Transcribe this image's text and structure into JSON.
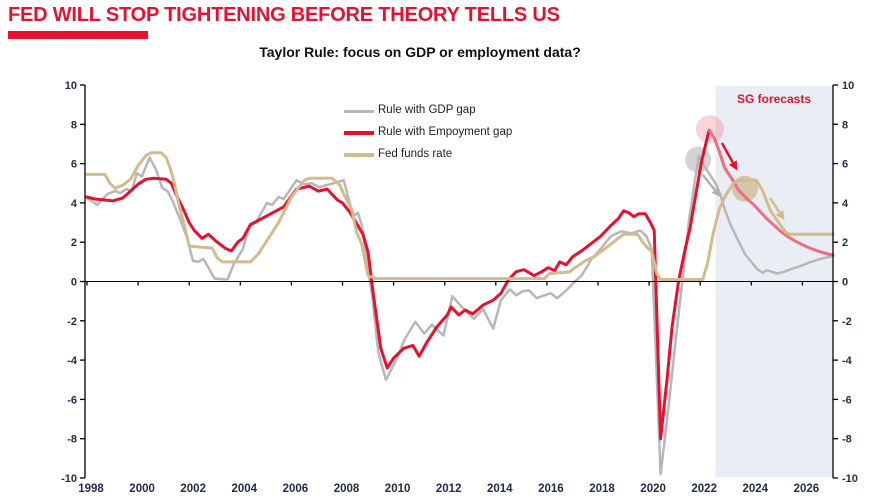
{
  "header": {
    "title": "FED WILL STOP TIGHTENING BEFORE THEORY TELLS US"
  },
  "colors": {
    "accent_red": "#e8112d",
    "forecast_red": "#ec6e80",
    "gdp_gray": "#b7b7b7",
    "fed_tan": "#d2bc8d",
    "axis_label_navy": "#242c48",
    "forecast_shading": "#e9eef4"
  },
  "chart_data": {
    "type": "line",
    "title": "Taylor Rule: focus on GDP or employment data?",
    "xlabel": "",
    "ylabel": "",
    "x_range": [
      1998,
      2027.2
    ],
    "ylim": [
      -10,
      10
    ],
    "y_ticks": [
      10,
      8,
      6,
      4,
      2,
      0,
      -2,
      -4,
      -6,
      -8,
      -10
    ],
    "x_tick_labels": [
      "1998",
      "2000",
      "2002",
      "2004",
      "2006",
      "2008",
      "2010",
      "2012",
      "2014",
      "2016",
      "2018",
      "2020",
      "2022",
      "2024",
      "2026"
    ],
    "x_tick_years": [
      1998,
      2000,
      2002,
      2004,
      2006,
      2008,
      2010,
      2012,
      2014,
      2016,
      2018,
      2020,
      2022,
      2024,
      2026
    ],
    "grid": false,
    "legend_position": "top-center",
    "forecast_region": {
      "from": 2022.6,
      "to": 2027.2,
      "label": "SG forecasts"
    },
    "series": [
      {
        "name": "Rule with GDP gap",
        "color": "#b7b7b7",
        "width": 2.5,
        "points": [
          [
            1998.0,
            4.25
          ],
          [
            1998.4,
            3.9
          ],
          [
            1998.8,
            4.45
          ],
          [
            1999.1,
            4.6
          ],
          [
            1999.3,
            4.5
          ],
          [
            1999.55,
            4.7
          ],
          [
            1999.75,
            4.6
          ],
          [
            1999.95,
            5.5
          ],
          [
            2000.15,
            5.35
          ],
          [
            2000.45,
            6.3
          ],
          [
            2000.7,
            5.7
          ],
          [
            2000.95,
            4.75
          ],
          [
            2001.15,
            4.6
          ],
          [
            2001.35,
            4.1
          ],
          [
            2001.6,
            3.3
          ],
          [
            2001.9,
            2.3
          ],
          [
            2002.15,
            1.05
          ],
          [
            2002.35,
            1.0
          ],
          [
            2002.55,
            1.15
          ],
          [
            2002.8,
            0.6
          ],
          [
            2003.0,
            0.15
          ],
          [
            2003.5,
            0.1
          ],
          [
            2003.75,
            0.9
          ],
          [
            2004.1,
            1.65
          ],
          [
            2004.35,
            2.8
          ],
          [
            2004.6,
            3.0
          ],
          [
            2005.05,
            4.0
          ],
          [
            2005.25,
            3.9
          ],
          [
            2005.5,
            4.3
          ],
          [
            2005.7,
            4.2
          ],
          [
            2006.2,
            5.15
          ],
          [
            2006.5,
            4.95
          ],
          [
            2006.8,
            5.0
          ],
          [
            2007.1,
            4.8
          ],
          [
            2007.5,
            4.95
          ],
          [
            2007.9,
            5.1
          ],
          [
            2008.05,
            5.15
          ],
          [
            2008.3,
            3.9
          ],
          [
            2008.45,
            3.35
          ],
          [
            2008.6,
            3.5
          ],
          [
            2008.75,
            2.9
          ],
          [
            2009.0,
            0.6
          ],
          [
            2009.15,
            -0.6
          ],
          [
            2009.4,
            -3.6
          ],
          [
            2009.7,
            -5.0
          ],
          [
            2010.1,
            -4.0
          ],
          [
            2010.45,
            -2.9
          ],
          [
            2010.85,
            -2.05
          ],
          [
            2011.2,
            -2.65
          ],
          [
            2011.5,
            -2.2
          ],
          [
            2011.95,
            -2.75
          ],
          [
            2012.3,
            -0.75
          ],
          [
            2012.6,
            -1.2
          ],
          [
            2012.9,
            -1.6
          ],
          [
            2013.15,
            -1.9
          ],
          [
            2013.5,
            -1.4
          ],
          [
            2013.9,
            -2.4
          ],
          [
            2014.2,
            -0.95
          ],
          [
            2014.55,
            -0.4
          ],
          [
            2014.8,
            -0.7
          ],
          [
            2015.05,
            -0.5
          ],
          [
            2015.3,
            -0.45
          ],
          [
            2015.6,
            -0.85
          ],
          [
            2015.9,
            -0.7
          ],
          [
            2016.15,
            -0.6
          ],
          [
            2016.4,
            -0.85
          ],
          [
            2016.8,
            -0.4
          ],
          [
            2017.1,
            0.0
          ],
          [
            2017.35,
            0.3
          ],
          [
            2017.55,
            0.7
          ],
          [
            2017.75,
            1.15
          ],
          [
            2018.0,
            1.5
          ],
          [
            2018.25,
            1.9
          ],
          [
            2018.5,
            2.3
          ],
          [
            2018.9,
            2.55
          ],
          [
            2019.3,
            2.45
          ],
          [
            2019.65,
            2.6
          ],
          [
            2019.9,
            2.3
          ],
          [
            2020.1,
            1.65
          ],
          [
            2020.45,
            -9.8
          ],
          [
            2020.75,
            -6.5
          ],
          [
            2021.0,
            -3.5
          ],
          [
            2021.3,
            0.0
          ],
          [
            2021.55,
            3.0
          ],
          [
            2021.8,
            5.2
          ],
          [
            2021.95,
            6.4
          ],
          [
            2022.1,
            6.0
          ],
          [
            2022.3,
            5.6
          ],
          [
            2022.6,
            5.0
          ],
          [
            2022.8,
            4.4
          ],
          [
            2022.95,
            3.7
          ],
          [
            2023.2,
            2.85
          ],
          [
            2023.5,
            2.05
          ],
          [
            2023.75,
            1.4
          ],
          [
            2024.0,
            1.0
          ],
          [
            2024.25,
            0.6
          ],
          [
            2024.45,
            0.45
          ],
          [
            2024.6,
            0.57
          ],
          [
            2024.8,
            0.5
          ],
          [
            2025.0,
            0.4
          ],
          [
            2025.3,
            0.5
          ],
          [
            2025.6,
            0.65
          ],
          [
            2025.9,
            0.77
          ],
          [
            2026.3,
            0.98
          ],
          [
            2026.7,
            1.15
          ],
          [
            2027.2,
            1.3
          ]
        ]
      },
      {
        "name": "Rule with Empoyment gap",
        "color": "#e8112d",
        "width": 3,
        "forecast_from": 2022.4,
        "forecast_color": "#ec6e80",
        "points": [
          [
            1998.0,
            4.3
          ],
          [
            1998.3,
            4.2
          ],
          [
            1998.7,
            4.15
          ],
          [
            1999.0,
            4.1
          ],
          [
            1999.4,
            4.25
          ],
          [
            1999.7,
            4.6
          ],
          [
            2000.0,
            4.95
          ],
          [
            2000.3,
            5.2
          ],
          [
            2000.6,
            5.25
          ],
          [
            2001.1,
            5.2
          ],
          [
            2001.3,
            5.0
          ],
          [
            2001.5,
            4.4
          ],
          [
            2001.8,
            3.6
          ],
          [
            2002.0,
            3.0
          ],
          [
            2002.2,
            2.6
          ],
          [
            2002.5,
            2.2
          ],
          [
            2002.75,
            2.4
          ],
          [
            2003.1,
            2.0
          ],
          [
            2003.4,
            1.7
          ],
          [
            2003.65,
            1.55
          ],
          [
            2003.9,
            2.0
          ],
          [
            2004.1,
            2.2
          ],
          [
            2004.4,
            2.9
          ],
          [
            2004.7,
            3.1
          ],
          [
            2005.2,
            3.45
          ],
          [
            2005.7,
            3.8
          ],
          [
            2006.2,
            4.7
          ],
          [
            2006.7,
            4.85
          ],
          [
            2007.05,
            4.6
          ],
          [
            2007.4,
            4.7
          ],
          [
            2007.8,
            4.15
          ],
          [
            2008.0,
            4.0
          ],
          [
            2008.3,
            3.5
          ],
          [
            2008.6,
            2.85
          ],
          [
            2008.8,
            2.4
          ],
          [
            2009.0,
            1.5
          ],
          [
            2009.2,
            -0.6
          ],
          [
            2009.5,
            -3.4
          ],
          [
            2009.75,
            -4.4
          ],
          [
            2010.0,
            -3.9
          ],
          [
            2010.4,
            -3.4
          ],
          [
            2010.75,
            -3.25
          ],
          [
            2011.0,
            -3.8
          ],
          [
            2011.3,
            -3.1
          ],
          [
            2011.7,
            -2.3
          ],
          [
            2012.1,
            -1.7
          ],
          [
            2012.25,
            -1.3
          ],
          [
            2012.55,
            -1.7
          ],
          [
            2012.8,
            -1.45
          ],
          [
            2013.1,
            -1.65
          ],
          [
            2013.5,
            -1.2
          ],
          [
            2013.9,
            -0.95
          ],
          [
            2014.2,
            -0.6
          ],
          [
            2014.5,
            0.1
          ],
          [
            2014.8,
            0.5
          ],
          [
            2015.1,
            0.6
          ],
          [
            2015.5,
            0.3
          ],
          [
            2015.8,
            0.5
          ],
          [
            2016.05,
            0.7
          ],
          [
            2016.3,
            0.55
          ],
          [
            2016.5,
            1.0
          ],
          [
            2016.75,
            0.85
          ],
          [
            2017.0,
            1.25
          ],
          [
            2017.4,
            1.6
          ],
          [
            2017.7,
            1.9
          ],
          [
            2018.1,
            2.3
          ],
          [
            2018.5,
            2.85
          ],
          [
            2018.8,
            3.2
          ],
          [
            2019.0,
            3.6
          ],
          [
            2019.2,
            3.5
          ],
          [
            2019.4,
            3.3
          ],
          [
            2019.6,
            3.45
          ],
          [
            2019.85,
            3.45
          ],
          [
            2020.05,
            3.0
          ],
          [
            2020.2,
            2.6
          ],
          [
            2020.45,
            -8.0
          ],
          [
            2020.7,
            -5.0
          ],
          [
            2020.9,
            -2.3
          ],
          [
            2021.15,
            0.0
          ],
          [
            2021.4,
            1.6
          ],
          [
            2021.6,
            2.7
          ],
          [
            2021.85,
            4.6
          ],
          [
            2022.05,
            6.1
          ],
          [
            2022.35,
            7.7
          ],
          [
            2022.55,
            7.3
          ],
          [
            2022.75,
            6.6
          ],
          [
            2022.95,
            5.8
          ],
          [
            2023.3,
            5.1
          ],
          [
            2023.5,
            4.65
          ],
          [
            2023.8,
            4.25
          ],
          [
            2024.1,
            3.9
          ],
          [
            2024.35,
            3.55
          ],
          [
            2024.6,
            3.2
          ],
          [
            2024.9,
            2.85
          ],
          [
            2025.15,
            2.55
          ],
          [
            2025.4,
            2.3
          ],
          [
            2025.8,
            2.0
          ],
          [
            2026.2,
            1.75
          ],
          [
            2026.6,
            1.55
          ],
          [
            2027.0,
            1.4
          ],
          [
            2027.2,
            1.35
          ]
        ]
      },
      {
        "name": "Fed funds rate",
        "color": "#d2bc8d",
        "width": 3,
        "points": [
          [
            1998.0,
            5.45
          ],
          [
            1998.7,
            5.45
          ],
          [
            1998.9,
            5.0
          ],
          [
            1999.1,
            4.75
          ],
          [
            1999.4,
            4.9
          ],
          [
            1999.7,
            5.2
          ],
          [
            2000.0,
            5.9
          ],
          [
            2000.3,
            6.4
          ],
          [
            2000.5,
            6.55
          ],
          [
            2000.9,
            6.55
          ],
          [
            2001.1,
            6.3
          ],
          [
            2001.25,
            5.8
          ],
          [
            2001.4,
            5.1
          ],
          [
            2001.6,
            3.9
          ],
          [
            2001.8,
            2.9
          ],
          [
            2002.0,
            1.8
          ],
          [
            2002.9,
            1.7
          ],
          [
            2003.1,
            1.2
          ],
          [
            2003.3,
            1.0
          ],
          [
            2004.4,
            1.0
          ],
          [
            2004.7,
            1.4
          ],
          [
            2005.0,
            2.0
          ],
          [
            2005.5,
            3.0
          ],
          [
            2006.0,
            4.3
          ],
          [
            2006.5,
            5.15
          ],
          [
            2006.7,
            5.25
          ],
          [
            2007.6,
            5.25
          ],
          [
            2007.9,
            4.9
          ],
          [
            2008.1,
            4.3
          ],
          [
            2008.35,
            3.7
          ],
          [
            2008.55,
            2.5
          ],
          [
            2008.75,
            1.9
          ],
          [
            2009.0,
            0.3
          ],
          [
            2009.3,
            0.15
          ],
          [
            2015.9,
            0.15
          ],
          [
            2016.1,
            0.4
          ],
          [
            2016.9,
            0.5
          ],
          [
            2017.1,
            0.7
          ],
          [
            2017.5,
            1.05
          ],
          [
            2017.9,
            1.3
          ],
          [
            2018.3,
            1.7
          ],
          [
            2018.8,
            2.2
          ],
          [
            2019.0,
            2.4
          ],
          [
            2019.55,
            2.4
          ],
          [
            2019.75,
            2.0
          ],
          [
            2019.95,
            1.7
          ],
          [
            2020.1,
            1.55
          ],
          [
            2020.3,
            0.4
          ],
          [
            2020.45,
            0.1
          ],
          [
            2022.1,
            0.1
          ],
          [
            2022.3,
            1.0
          ],
          [
            2022.5,
            2.4
          ],
          [
            2022.75,
            3.7
          ],
          [
            2023.0,
            4.4
          ],
          [
            2023.3,
            5.0
          ],
          [
            2023.5,
            5.15
          ],
          [
            2024.2,
            5.15
          ],
          [
            2024.45,
            4.6
          ],
          [
            2024.75,
            3.6
          ],
          [
            2025.1,
            2.95
          ],
          [
            2025.35,
            2.5
          ],
          [
            2025.5,
            2.4
          ],
          [
            2027.2,
            2.4
          ]
        ]
      }
    ],
    "annotations": {
      "circles": [
        {
          "name": "gdp-rule-peak-highlight",
          "x": 2021.92,
          "y": 6.2,
          "r": 13,
          "color": "rgba(130,130,130,0.35)"
        },
        {
          "name": "employment-rule-peak-highlight",
          "x": 2022.38,
          "y": 7.75,
          "r": 14,
          "color": "rgba(232,17,45,0.18)"
        },
        {
          "name": "fed-funds-peak-highlight",
          "x": 2023.75,
          "y": 4.72,
          "r": 13,
          "color": "rgba(196,168,110,0.55)"
        }
      ],
      "arrows": [
        {
          "name": "gdp-rule-down-arrow",
          "from": [
            2022.1,
            5.42
          ],
          "to": [
            2022.8,
            4.3
          ],
          "color": "#b0b0b0"
        },
        {
          "name": "employment-rule-down-arrow",
          "from": [
            2022.85,
            7.05
          ],
          "to": [
            2023.45,
            5.65
          ],
          "color": "#e8112d"
        },
        {
          "name": "fed-funds-down-arrow",
          "from": [
            2024.73,
            4.25
          ],
          "to": [
            2025.3,
            3.13
          ],
          "color": "#d2bc8d"
        }
      ]
    }
  }
}
